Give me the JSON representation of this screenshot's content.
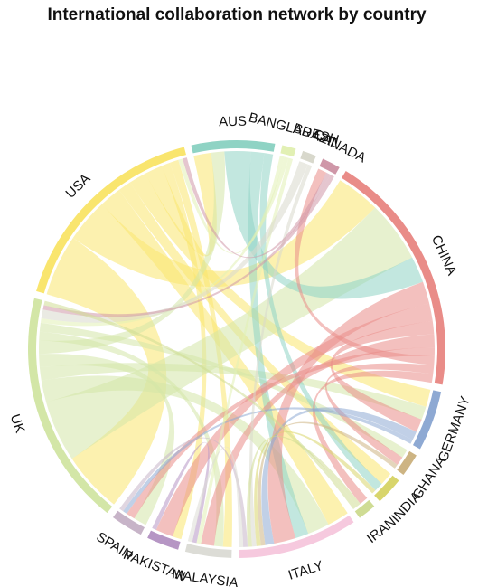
{
  "title": "International collaboration network by country",
  "countries": [
    {
      "id": "aus",
      "name": "AUS",
      "color": "#8fd3c4"
    },
    {
      "id": "bangladesh",
      "name": "BANGLADESH",
      "color": "#e2f0b4"
    },
    {
      "id": "brazil",
      "name": "BRAZIL",
      "color": "#d8d8cc"
    },
    {
      "id": "canada",
      "name": "CANADA",
      "color": "#cf97a8"
    },
    {
      "id": "china",
      "name": "CHINA",
      "color": "#e98c88"
    },
    {
      "id": "germany",
      "name": "GERMANY",
      "color": "#8ea9d3"
    },
    {
      "id": "ghana",
      "name": "GHANA",
      "color": "#cdb483"
    },
    {
      "id": "india",
      "name": "INDIA",
      "color": "#d8d56c"
    },
    {
      "id": "iran",
      "name": "IRAN",
      "color": "#cfdc94"
    },
    {
      "id": "italy",
      "name": "ITALY",
      "color": "#f6c9de"
    },
    {
      "id": "malaysia",
      "name": "MALAYSIA",
      "color": "#dcdcd6"
    },
    {
      "id": "pakistan",
      "name": "PAKISTAN",
      "color": "#b696c4"
    },
    {
      "id": "spain",
      "name": "SPAIN",
      "color": "#c7b4c8"
    },
    {
      "id": "uk",
      "name": "UK",
      "color": "#d3e6a7"
    },
    {
      "id": "usa",
      "name": "USA",
      "color": "#f9e56e"
    }
  ],
  "links": [
    {
      "source": "usa",
      "target": "uk",
      "value": 14
    },
    {
      "source": "usa",
      "target": "china",
      "value": 10
    },
    {
      "source": "usa",
      "target": "italy",
      "value": 5
    },
    {
      "source": "usa",
      "target": "india",
      "value": 3
    },
    {
      "source": "usa",
      "target": "germany",
      "value": 4
    },
    {
      "source": "usa",
      "target": "aus",
      "value": 4
    },
    {
      "source": "usa",
      "target": "pakistan",
      "value": 2
    },
    {
      "source": "usa",
      "target": "malaysia",
      "value": 2
    },
    {
      "source": "uk",
      "target": "china",
      "value": 14
    },
    {
      "source": "uk",
      "target": "italy",
      "value": 5
    },
    {
      "source": "uk",
      "target": "germany",
      "value": 3
    },
    {
      "source": "uk",
      "target": "spain",
      "value": 3
    },
    {
      "source": "uk",
      "target": "aus",
      "value": 3
    },
    {
      "source": "uk",
      "target": "malaysia",
      "value": 2
    },
    {
      "source": "uk",
      "target": "ghana",
      "value": 2
    },
    {
      "source": "aus",
      "target": "china",
      "value": 6
    },
    {
      "source": "aus",
      "target": "italy",
      "value": 3
    },
    {
      "source": "aus",
      "target": "india",
      "value": 2
    },
    {
      "source": "china",
      "target": "italy",
      "value": 5
    },
    {
      "source": "china",
      "target": "pakistan",
      "value": 4
    },
    {
      "source": "china",
      "target": "germany",
      "value": 3
    },
    {
      "source": "china",
      "target": "malaysia",
      "value": 3
    },
    {
      "source": "china",
      "target": "spain",
      "value": 2
    },
    {
      "source": "china",
      "target": "canada",
      "value": 2
    },
    {
      "source": "china",
      "target": "ghana",
      "value": 2
    },
    {
      "source": "china",
      "target": "iran",
      "value": 2
    },
    {
      "source": "germany",
      "target": "italy",
      "value": 2
    },
    {
      "source": "germany",
      "target": "spain",
      "value": 1
    },
    {
      "source": "ghana",
      "target": "italy",
      "value": 1
    },
    {
      "source": "india",
      "target": "italy",
      "value": 1
    },
    {
      "source": "bangladesh",
      "target": "usa",
      "value": 1
    },
    {
      "source": "bangladesh",
      "target": "uk",
      "value": 1
    },
    {
      "source": "bangladesh",
      "target": "malaysia",
      "value": 1
    },
    {
      "source": "brazil",
      "target": "uk",
      "value": 2
    },
    {
      "source": "brazil",
      "target": "italy",
      "value": 1
    },
    {
      "source": "canada",
      "target": "usa",
      "value": 1
    },
    {
      "source": "canada",
      "target": "uk",
      "value": 1
    },
    {
      "source": "pakistan",
      "target": "malaysia",
      "value": 1
    },
    {
      "source": "iran",
      "target": "italy",
      "value": 1
    },
    {
      "source": "iran",
      "target": "uk",
      "value": 1
    },
    {
      "source": "spain",
      "target": "italy",
      "value": 1
    },
    {
      "source": "malaysia",
      "target": "italy",
      "value": 1
    }
  ]
}
